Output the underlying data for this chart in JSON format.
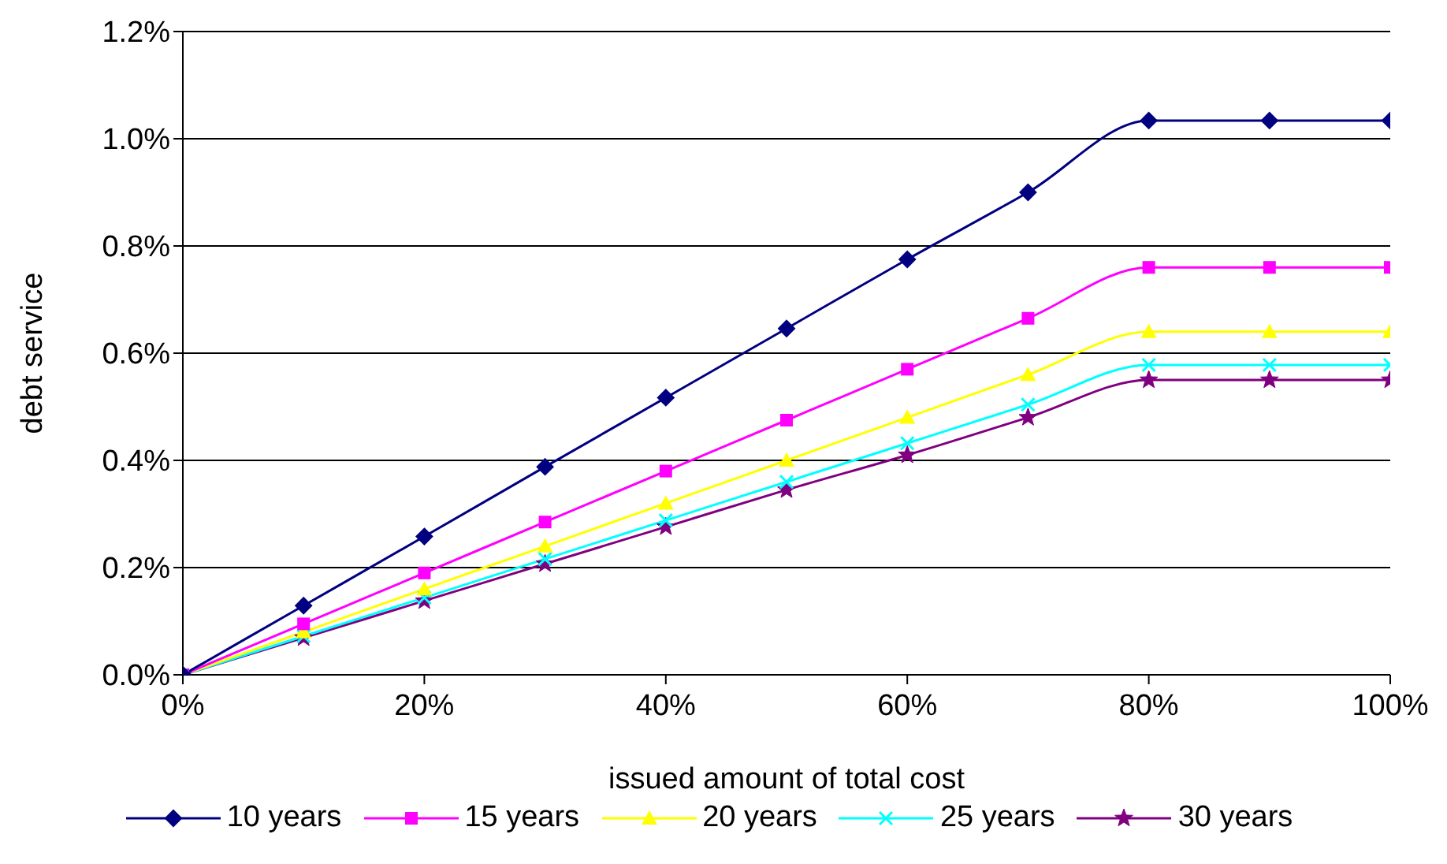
{
  "chart_data": {
    "type": "line",
    "xlabel": "issued amount of total cost",
    "ylabel": "debt service",
    "x": [
      0,
      10,
      20,
      30,
      40,
      50,
      60,
      70,
      80,
      90,
      100
    ],
    "xlim": [
      0,
      100
    ],
    "xticks": [
      {
        "value": 0,
        "label": "0%"
      },
      {
        "value": 20,
        "label": "20%"
      },
      {
        "value": 40,
        "label": "40%"
      },
      {
        "value": 60,
        "label": "60%"
      },
      {
        "value": 80,
        "label": "80%"
      },
      {
        "value": 100,
        "label": "100%"
      }
    ],
    "ylim": [
      0,
      1.2
    ],
    "yticks": [
      {
        "value": 0,
        "label": "0.0%"
      },
      {
        "value": 0.2,
        "label": "0.2%"
      },
      {
        "value": 0.4,
        "label": "0.4%"
      },
      {
        "value": 0.6,
        "label": "0.6%"
      },
      {
        "value": 0.8,
        "label": "0.8%"
      },
      {
        "value": 1.0,
        "label": "1.0%"
      },
      {
        "value": 1.2,
        "label": "1.2%"
      }
    ],
    "grid": "y",
    "legend": "bottom",
    "series": [
      {
        "name": "10 years",
        "color": "#000080",
        "marker": "diamond",
        "values": [
          0,
          0.129,
          0.258,
          0.388,
          0.517,
          0.646,
          0.775,
          0.9,
          1.034,
          1.034,
          1.034
        ]
      },
      {
        "name": "15 years",
        "color": "#ff00ff",
        "marker": "square",
        "values": [
          0,
          0.095,
          0.19,
          0.285,
          0.38,
          0.475,
          0.57,
          0.665,
          0.76,
          0.76,
          0.76
        ]
      },
      {
        "name": "20 years",
        "color": "#ffff00",
        "marker": "triangle",
        "values": [
          0,
          0.08,
          0.16,
          0.24,
          0.32,
          0.4,
          0.48,
          0.56,
          0.64,
          0.64,
          0.64
        ]
      },
      {
        "name": "25 years",
        "color": "#00ffff",
        "marker": "cross",
        "values": [
          0,
          0.072,
          0.144,
          0.216,
          0.288,
          0.36,
          0.432,
          0.504,
          0.578,
          0.578,
          0.578
        ]
      },
      {
        "name": "30 years",
        "color": "#800080",
        "marker": "star",
        "values": [
          0,
          0.069,
          0.138,
          0.207,
          0.276,
          0.345,
          0.41,
          0.48,
          0.55,
          0.55,
          0.55
        ]
      }
    ]
  }
}
